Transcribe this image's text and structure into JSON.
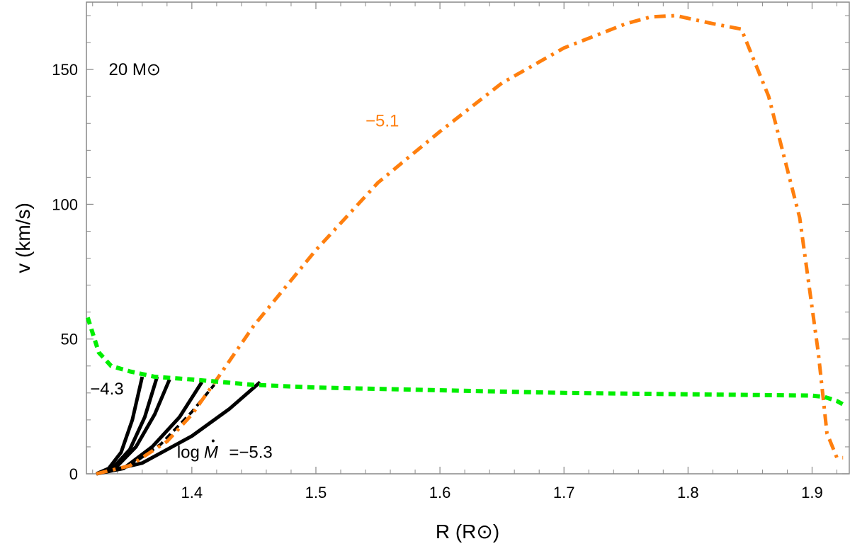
{
  "chart_data": {
    "type": "line",
    "xlabel": "R (R⊙)",
    "ylabel": "v (km/s)",
    "xlim": [
      1.315,
      1.93
    ],
    "ylim": [
      0,
      175
    ],
    "x_ticks": [
      1.4,
      1.5,
      1.6,
      1.7,
      1.8,
      1.9
    ],
    "x_tick_labels": [
      "1.4",
      "1.5",
      "1.6",
      "1.7",
      "1.8",
      "1.9"
    ],
    "y_ticks": [
      0,
      50,
      100,
      150
    ],
    "y_tick_labels": [
      "0",
      "50",
      "100",
      "150"
    ],
    "grid": false,
    "annotations": [
      {
        "text": "20 M⊙",
        "x": 1.333,
        "y": 150,
        "color": "#000000"
      },
      {
        "text": "−5.1",
        "x": 1.54,
        "y": 131,
        "color": "#ff7f0e"
      },
      {
        "text": "−4.3",
        "x": 1.318,
        "y": 31.5,
        "color": "#000000"
      },
      {
        "text": "log",
        "x": 1.388,
        "y": 8,
        "color": "#000000"
      },
      {
        "text": "=−5.3",
        "x": 1.43,
        "y": 8,
        "color": "#000000"
      }
    ],
    "series": [
      {
        "style": "solid",
        "color": "#000000",
        "x": [
          1.323,
          1.333,
          1.343,
          1.352,
          1.36
        ],
        "y": [
          0,
          2,
          8,
          20,
          36
        ]
      },
      {
        "style": "solid",
        "color": "#000000",
        "x": [
          1.323,
          1.336,
          1.35,
          1.362,
          1.372
        ],
        "y": [
          0,
          2,
          9,
          21,
          36
        ]
      },
      {
        "style": "solid",
        "color": "#000000",
        "x": [
          1.323,
          1.338,
          1.355,
          1.37,
          1.382
        ],
        "y": [
          0,
          2,
          10,
          22,
          35
        ]
      },
      {
        "style": "solid",
        "color": "#000000",
        "x": [
          1.323,
          1.345,
          1.368,
          1.39,
          1.408
        ],
        "y": [
          0,
          2,
          10,
          21,
          34
        ]
      },
      {
        "style": "dashed",
        "color": "#000000",
        "x": [
          1.323,
          1.35,
          1.375,
          1.4,
          1.418
        ],
        "y": [
          0,
          3,
          11,
          23,
          33
        ]
      },
      {
        "style": "solid",
        "color": "#000000",
        "x": [
          1.323,
          1.36,
          1.4,
          1.43,
          1.455
        ],
        "y": [
          0,
          4,
          14,
          24,
          34
        ]
      },
      {
        "name": "−5.1",
        "style": "dashdot",
        "color": "#ff7f0e",
        "x": [
          1.323,
          1.35,
          1.38,
          1.4,
          1.42,
          1.45,
          1.5,
          1.55,
          1.6,
          1.65,
          1.7,
          1.75,
          1.77,
          1.79,
          1.82,
          1.843,
          1.865,
          1.89,
          1.905,
          1.912,
          1.92,
          1.925
        ],
        "y": [
          0,
          3,
          12,
          22,
          35,
          55,
          83,
          108,
          127,
          145,
          158,
          167,
          169.5,
          170,
          167,
          165,
          140,
          95,
          45,
          15,
          6,
          6
        ]
      },
      {
        "style": "dotted",
        "color": "#00ee00",
        "x": [
          1.316,
          1.325,
          1.335,
          1.35,
          1.37,
          1.4,
          1.45,
          1.5,
          1.6,
          1.7,
          1.8,
          1.9,
          1.91,
          1.92,
          1.928
        ],
        "y": [
          58,
          45,
          40,
          38,
          36,
          35,
          33,
          32,
          31,
          30,
          29.5,
          29,
          28.5,
          27,
          25
        ]
      }
    ]
  }
}
